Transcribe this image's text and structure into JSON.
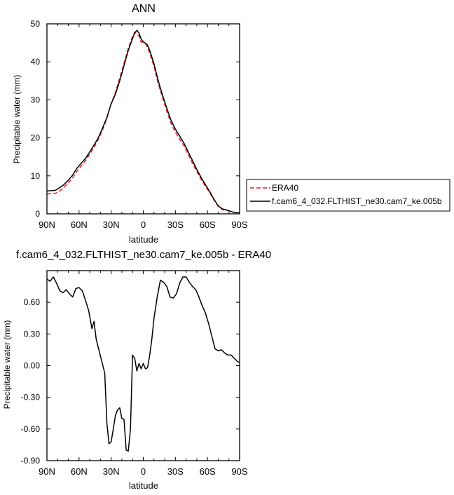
{
  "chart_data": [
    {
      "type": "line",
      "title": "ANN",
      "xlabel": "latitude",
      "ylabel": "Precipitable water (mm)",
      "xlim": [
        90,
        -90
      ],
      "ylim": [
        0,
        50
      ],
      "xticks": [
        90,
        60,
        30,
        0,
        -30,
        -60,
        -90
      ],
      "xtick_labels": [
        "90N",
        "60N",
        "30N",
        "0",
        "30S",
        "60S",
        "90S"
      ],
      "yticks": [
        0,
        10,
        20,
        30,
        40,
        50
      ],
      "ytick_labels": [
        "0",
        "10",
        "20",
        "30",
        "40",
        "50"
      ],
      "legend": {
        "placement": "right",
        "entries": [
          "ERA40",
          "f.cam6_4_032.FLTHIST_ne30.cam7_ke.005b"
        ]
      },
      "series": [
        {
          "name": "ERA40",
          "color": "#e41a1c",
          "dash": true,
          "x": [
            90,
            86,
            82,
            78,
            74,
            70,
            66,
            62,
            58,
            54,
            50,
            46,
            42,
            38,
            34,
            30,
            26,
            22,
            18,
            14,
            10,
            8,
            6,
            4,
            2,
            0,
            -2,
            -4,
            -6,
            -10,
            -14,
            -18,
            -22,
            -26,
            -30,
            -34,
            -38,
            -42,
            -46,
            -50,
            -54,
            -58,
            -62,
            -66,
            -70,
            -74,
            -78,
            -82,
            -86,
            -90
          ],
          "y": [
            5.2,
            5.3,
            5.4,
            6.0,
            7.0,
            8.2,
            9.5,
            11.2,
            12.6,
            14.0,
            15.7,
            17.5,
            19.6,
            22.1,
            25.1,
            29.0,
            32.0,
            35.8,
            39.6,
            43.6,
            46.7,
            47.8,
            47.4,
            46.8,
            45.2,
            45.2,
            44.8,
            43.8,
            42.3,
            38.8,
            34.2,
            30.6,
            27.0,
            23.8,
            21.5,
            19.7,
            17.9,
            15.6,
            13.3,
            11.1,
            9.1,
            7.3,
            5.6,
            3.7,
            2.0,
            1.1,
            0.9,
            0.6,
            0.3,
            0.2
          ]
        },
        {
          "name": "f.cam6_4_032.FLTHIST_ne30.cam7_ke.005b",
          "color": "#000000",
          "dash": false,
          "x": [
            90,
            86,
            82,
            78,
            74,
            70,
            66,
            62,
            58,
            54,
            50,
            46,
            42,
            38,
            34,
            30,
            26,
            22,
            18,
            14,
            10,
            8,
            6,
            4,
            2,
            0,
            -2,
            -4,
            -6,
            -10,
            -14,
            -18,
            -22,
            -26,
            -30,
            -34,
            -38,
            -42,
            -46,
            -50,
            -54,
            -58,
            -62,
            -66,
            -70,
            -74,
            -78,
            -82,
            -86,
            -90
          ],
          "y": [
            6.0,
            6.1,
            6.2,
            6.9,
            7.7,
            8.9,
            10.2,
            12.0,
            13.3,
            14.6,
            16.3,
            18.1,
            20.0,
            22.6,
            25.4,
            29.0,
            31.5,
            35.0,
            39.0,
            43.0,
            46.1,
            47.6,
            48.3,
            47.6,
            46.0,
            45.3,
            44.9,
            44.4,
            43.0,
            39.5,
            35.0,
            31.2,
            27.8,
            24.6,
            22.3,
            20.5,
            18.6,
            16.3,
            14.0,
            11.7,
            9.6,
            7.7,
            5.9,
            3.9,
            2.1,
            1.3,
            1.0,
            0.6,
            0.3,
            0.3
          ]
        }
      ]
    },
    {
      "type": "line",
      "title": "f.cam6_4_032.FLTHIST_ne30.cam7_ke.005b - ERA40",
      "xlabel": "latitude",
      "ylabel": "Precipitable water (mm)",
      "xlim": [
        90,
        -90
      ],
      "ylim": [
        -0.9,
        0.9
      ],
      "xticks": [
        90,
        60,
        30,
        0,
        -30,
        -60,
        -90
      ],
      "xtick_labels": [
        "90N",
        "60N",
        "30N",
        "0",
        "30S",
        "60S",
        "90S"
      ],
      "yticks": [
        -0.9,
        -0.6,
        -0.3,
        0.0,
        0.3,
        0.6
      ],
      "ytick_labels": [
        "-0.90",
        "-0.60",
        "-0.30",
        "0.00",
        "0.30",
        "0.60"
      ],
      "series": [
        {
          "color": "#000000",
          "dash": false,
          "x": [
            90,
            87,
            84,
            81,
            78,
            75,
            72,
            69,
            66,
            63,
            60,
            57,
            54,
            51,
            48,
            46,
            44,
            42,
            39,
            36,
            34,
            32,
            30,
            28,
            26,
            24,
            22,
            20,
            18,
            16,
            14,
            12,
            10,
            8,
            6,
            4,
            2,
            0,
            -2,
            -4,
            -6,
            -8,
            -10,
            -13,
            -16,
            -19,
            -22,
            -25,
            -28,
            -31,
            -34,
            -37,
            -40,
            -43,
            -46,
            -49,
            -52,
            -55,
            -58,
            -61,
            -64,
            -67,
            -70,
            -73,
            -76,
            -79,
            -82,
            -85,
            -88,
            -90
          ],
          "y": [
            0.82,
            0.8,
            0.84,
            0.78,
            0.71,
            0.69,
            0.72,
            0.68,
            0.65,
            0.73,
            0.74,
            0.71,
            0.62,
            0.52,
            0.35,
            0.42,
            0.25,
            0.17,
            0.05,
            -0.07,
            -0.55,
            -0.74,
            -0.72,
            -0.6,
            -0.47,
            -0.42,
            -0.4,
            -0.5,
            -0.51,
            -0.8,
            -0.81,
            -0.6,
            0.1,
            0.07,
            -0.05,
            0.02,
            -0.03,
            0.02,
            -0.03,
            -0.02,
            0.1,
            0.25,
            0.45,
            0.65,
            0.81,
            0.79,
            0.75,
            0.65,
            0.64,
            0.68,
            0.78,
            0.84,
            0.84,
            0.79,
            0.75,
            0.72,
            0.65,
            0.57,
            0.5,
            0.4,
            0.28,
            0.16,
            0.14,
            0.15,
            0.12,
            0.1,
            0.1,
            0.07,
            0.04,
            0.03
          ]
        }
      ]
    }
  ]
}
